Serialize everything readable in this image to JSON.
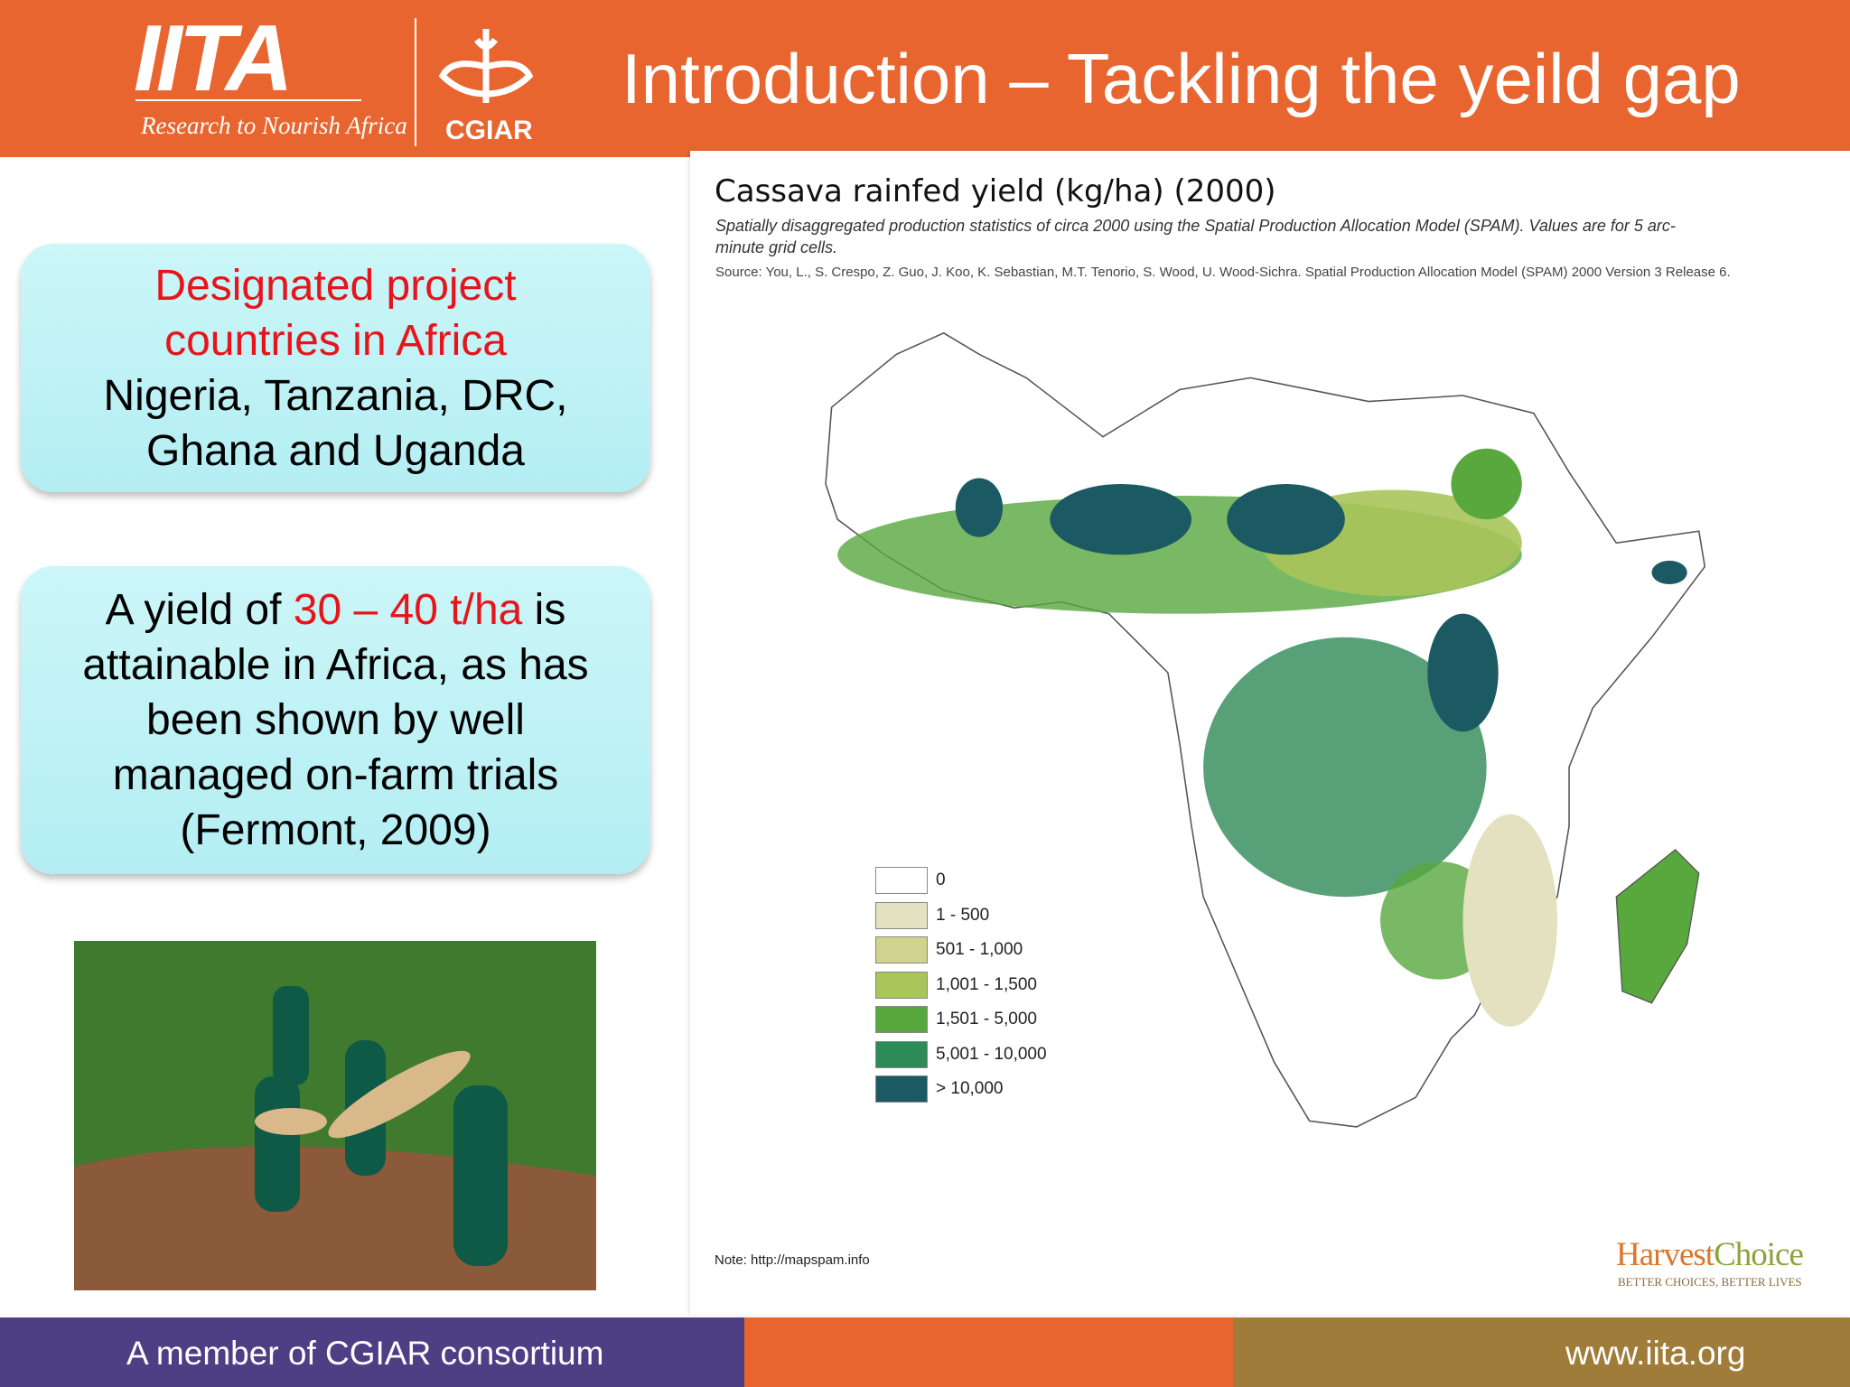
{
  "header": {
    "logo": "IITA",
    "tagline": "Research to Nourish Africa",
    "partner": "CGIAR",
    "title": "Introduction – Tackling the yeild gap"
  },
  "box1": {
    "highlight": "Designated project countries in Africa",
    "text": "Nigeria, Tanzania, DRC, Ghana and Uganda"
  },
  "box2": {
    "before": "A yield of",
    "highlight": "30 – 40 t/ha",
    "after": "is attainable in Africa, as has been shown by well managed on-farm trials (Fermont, 2009)"
  },
  "map": {
    "title": "Cassava rainfed yield (kg/ha) (2000)",
    "subtitle": "Spatially disaggregated production statistics of circa 2000 using the Spatial Production Allocation Model (SPAM). Values are for 5 arc-minute grid cells.",
    "source": "Source: You, L., S. Crespo, Z. Guo, J. Koo, K. Sebastian, M.T. Tenorio, S. Wood, U. Wood-Sichra. Spatial Production Allocation Model (SPAM) 2000 Version 3 Release 6.",
    "legend": [
      "0",
      "1 - 500",
      "501 - 1,000",
      "1,001 - 1,500",
      "1,501 - 5,000",
      "5,001 - 10,000",
      "> 10,000"
    ],
    "note": "Note: http://mapspam.info",
    "brand_a": "Harvest",
    "brand_b": "Choice",
    "brand_tagline": "BETTER CHOICES, BETTER LIVES"
  },
  "footer": {
    "left": "A member of CGIAR consortium",
    "right": "www.iita.org"
  }
}
